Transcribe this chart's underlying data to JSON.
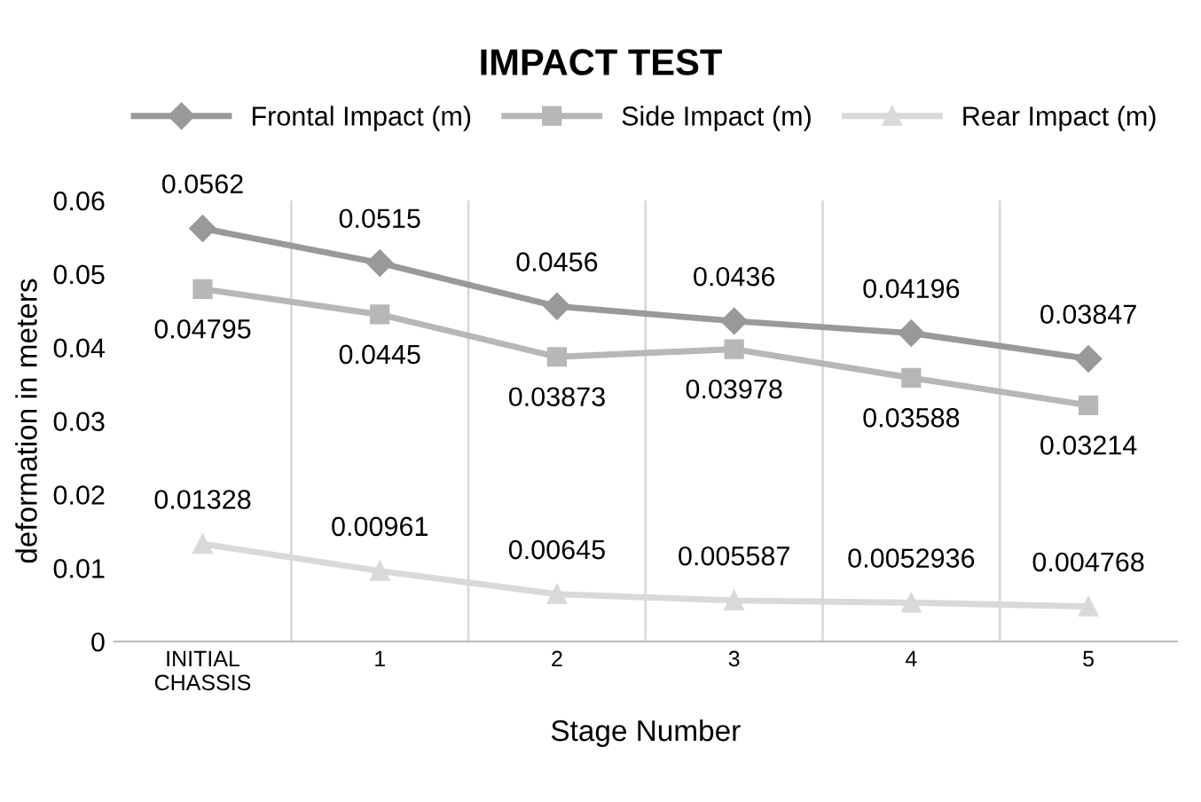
{
  "chart_data": {
    "type": "line",
    "title": "IMPACT TEST",
    "xlabel": "Stage Number",
    "ylabel": "deformation in meters",
    "categories": [
      "INITIAL\nCHASSIS",
      "1",
      "2",
      "3",
      "4",
      "5"
    ],
    "series": [
      {
        "name": "Frontal Impact (m)",
        "color": "#999999",
        "marker": "diamond",
        "values": [
          0.0562,
          0.0515,
          0.0456,
          0.0436,
          0.04196,
          0.03847
        ]
      },
      {
        "name": "Side Impact (m)",
        "color": "#b7b7b7",
        "marker": "square",
        "values": [
          0.04795,
          0.0445,
          0.03873,
          0.03978,
          0.03588,
          0.03214
        ]
      },
      {
        "name": "Rear Impact (m)",
        "color": "#d9d9d9",
        "marker": "triangle",
        "values": [
          0.01328,
          0.00961,
          0.00645,
          0.005587,
          0.0052936,
          0.004768
        ]
      }
    ],
    "ylim": [
      0,
      0.06
    ],
    "yticks": [
      0,
      0.01,
      0.02,
      0.03,
      0.04,
      0.05,
      0.06
    ],
    "grid": "x",
    "legend": "top",
    "data_labels": true,
    "line_style": "solid"
  }
}
